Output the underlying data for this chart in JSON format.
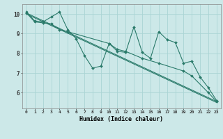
{
  "xlabel": "Humidex (Indice chaleur)",
  "ylabel": "",
  "background_color": "#cce8e8",
  "grid_color": "#aad4d4",
  "line_color": "#2a7a6a",
  "xlim": [
    -0.5,
    23.5
  ],
  "ylim": [
    5.2,
    10.5
  ],
  "yticks": [
    6,
    7,
    8,
    9,
    10
  ],
  "xticks": [
    0,
    1,
    2,
    3,
    4,
    5,
    6,
    7,
    8,
    9,
    10,
    11,
    12,
    13,
    14,
    15,
    16,
    17,
    18,
    19,
    20,
    21,
    22,
    23
  ],
  "series": [
    {
      "x": [
        0,
        1,
        2,
        3,
        4,
        5,
        6,
        7,
        8,
        9,
        10,
        11,
        12,
        13,
        14,
        15,
        16,
        17,
        18,
        19,
        20,
        21,
        22,
        23
      ],
      "y": [
        10.1,
        9.65,
        9.6,
        9.85,
        10.1,
        9.2,
        8.75,
        7.9,
        7.25,
        7.35,
        8.5,
        8.1,
        8.05,
        9.35,
        8.05,
        7.75,
        9.1,
        8.7,
        8.55,
        7.5,
        7.6,
        6.8,
        6.25,
        5.6
      ]
    },
    {
      "x": [
        0,
        1,
        2,
        3,
        4,
        5,
        10,
        11,
        12,
        14,
        16,
        19,
        20,
        22,
        23
      ],
      "y": [
        10.05,
        9.6,
        9.55,
        9.5,
        9.2,
        9.1,
        8.5,
        8.2,
        8.1,
        7.75,
        7.5,
        7.1,
        6.85,
        6.0,
        5.55
      ]
    },
    {
      "x": [
        0,
        23
      ],
      "y": [
        10.05,
        5.55
      ]
    },
    {
      "x": [
        0,
        23
      ],
      "y": [
        10.0,
        5.5
      ]
    }
  ]
}
